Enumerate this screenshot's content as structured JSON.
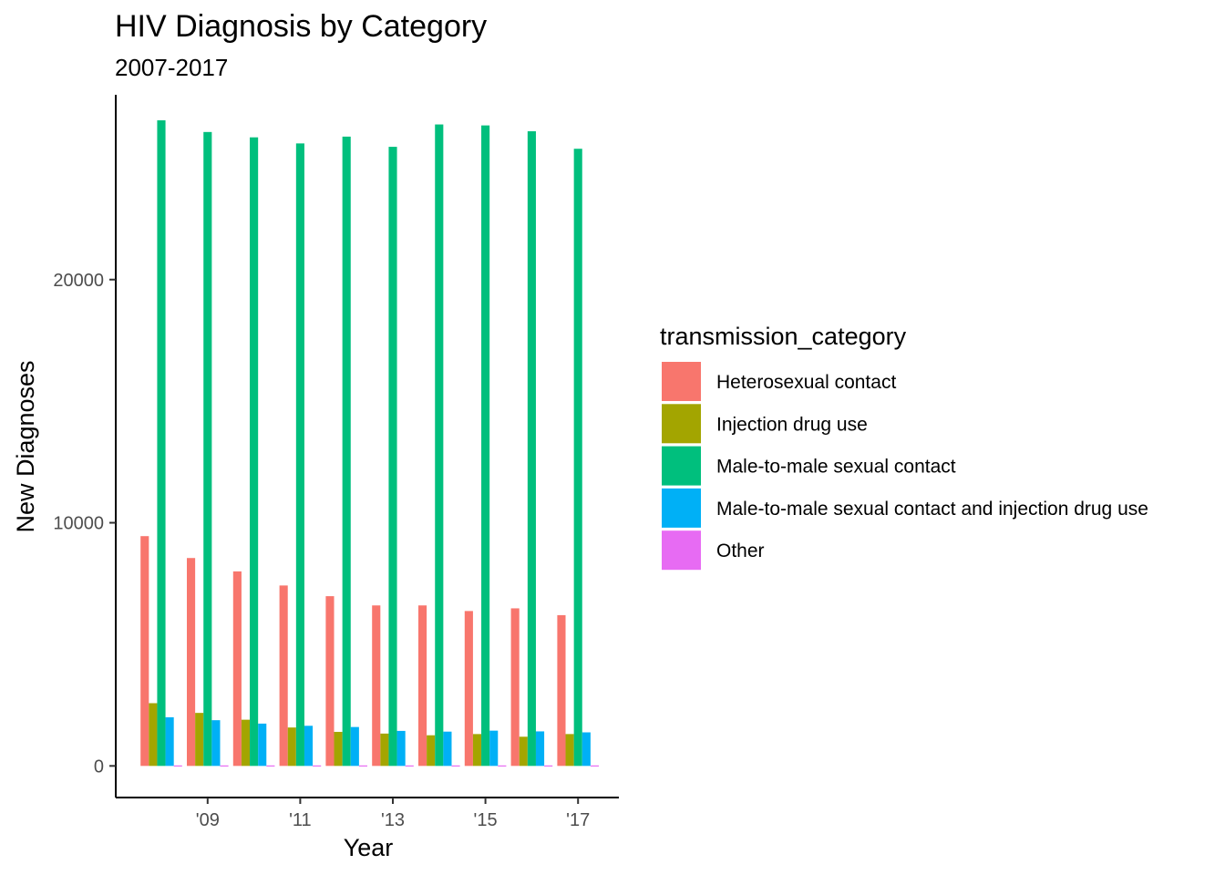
{
  "chart_data": {
    "type": "bar",
    "title": "HIV Diagnosis by Category",
    "subtitle": "2007-2017",
    "xlabel": "Year",
    "ylabel": "New Diagnoses",
    "categories": [
      "2008",
      "2009",
      "2010",
      "2011",
      "2012",
      "2013",
      "2014",
      "2015",
      "2016",
      "2017"
    ],
    "x_tick_labels": [
      {
        "value": "2009",
        "label": "'09"
      },
      {
        "value": "2011",
        "label": "'11"
      },
      {
        "value": "2013",
        "label": "'13"
      },
      {
        "value": "2015",
        "label": "'15"
      },
      {
        "value": "2017",
        "label": "'17"
      }
    ],
    "y_ticks": [
      0,
      10000,
      20000
    ],
    "ylim": [
      -1300,
      27600
    ],
    "grid": false,
    "legend": {
      "title": "transmission_category",
      "position": "right"
    },
    "series": [
      {
        "name": "Heterosexual contact",
        "color": "#F8766D",
        "values": [
          9450,
          8550,
          8000,
          7420,
          6980,
          6600,
          6600,
          6370,
          6480,
          6200
        ]
      },
      {
        "name": "Injection drug use",
        "color": "#A3A500",
        "values": [
          2580,
          2180,
          1900,
          1580,
          1400,
          1330,
          1260,
          1310,
          1200,
          1310
        ]
      },
      {
        "name": "Male-to-male sexual contact",
        "color": "#00BF7D",
        "values": [
          26550,
          26070,
          25850,
          25600,
          25880,
          25460,
          26380,
          26340,
          26100,
          25380
        ]
      },
      {
        "name": "Male-to-male sexual contact and injection drug use",
        "color": "#00B0F6",
        "values": [
          2000,
          1880,
          1740,
          1650,
          1600,
          1440,
          1410,
          1450,
          1420,
          1380
        ]
      },
      {
        "name": "Other",
        "color": "#E76BF3",
        "values": [
          20,
          20,
          20,
          20,
          20,
          20,
          20,
          20,
          20,
          20
        ]
      }
    ]
  }
}
